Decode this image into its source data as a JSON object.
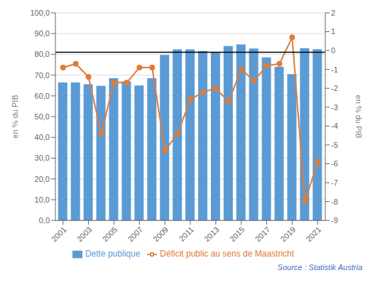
{
  "chart_data": {
    "type": "bar",
    "x": [
      2001,
      2002,
      2003,
      2004,
      2005,
      2006,
      2007,
      2008,
      2009,
      2010,
      2011,
      2012,
      2013,
      2014,
      2015,
      2016,
      2017,
      2018,
      2019,
      2020,
      2021
    ],
    "series": [
      {
        "name": "Dette publique",
        "type": "bar",
        "color": "#5B9BD5",
        "values": [
          66.5,
          66.5,
          65.6,
          64.8,
          68.5,
          67.0,
          65.0,
          68.5,
          79.7,
          82.4,
          82.4,
          81.6,
          81.0,
          84.0,
          84.8,
          82.8,
          78.5,
          74.0,
          70.5,
          83.0,
          82.5
        ]
      },
      {
        "name": "Déficit public au sens de Maastricht",
        "type": "line",
        "color": "#E07B39",
        "marker": "circle",
        "axis": "y2",
        "values": [
          -0.9,
          -0.7,
          -1.4,
          -4.4,
          -1.7,
          -1.7,
          -0.9,
          -0.9,
          -5.3,
          -4.4,
          -2.6,
          -2.2,
          -2.0,
          -2.7,
          -1.0,
          -1.6,
          -0.8,
          -0.7,
          0.7,
          -8.0,
          -5.9
        ]
      }
    ],
    "xlim": [
      2000.4,
      2021.6
    ],
    "xticks": [
      2001,
      2003,
      2005,
      2007,
      2009,
      2011,
      2013,
      2015,
      2017,
      2019,
      2021
    ],
    "ylim": [
      0,
      100
    ],
    "yticks": [
      {
        "value": 0,
        "label": "0,0"
      },
      {
        "value": 10,
        "label": "10,0"
      },
      {
        "value": 20,
        "label": "20,0"
      },
      {
        "value": 30,
        "label": "30,0"
      },
      {
        "value": 40,
        "label": "40,0"
      },
      {
        "value": 50,
        "label": "50,0"
      },
      {
        "value": 60,
        "label": "60,0"
      },
      {
        "value": 70,
        "label": "70,0"
      },
      {
        "value": 80,
        "label": "80,0"
      },
      {
        "value": 90,
        "label": "90,0"
      },
      {
        "value": 100,
        "label": "100,0"
      }
    ],
    "y2lim": [
      -9,
      2
    ],
    "y2ticks": [
      -9,
      -8,
      -7,
      -6,
      -5,
      -4,
      -3,
      -2,
      -1,
      0,
      1,
      2
    ],
    "y_label": "en % du PIB",
    "y2_label": "en % du PIB",
    "hline": {
      "y": 81.0,
      "color": "#000000"
    },
    "grid": true,
    "legend": "bottom",
    "annotations": [
      {
        "text": "Source : Statistik Austria",
        "color": "#4472C4"
      }
    ]
  }
}
